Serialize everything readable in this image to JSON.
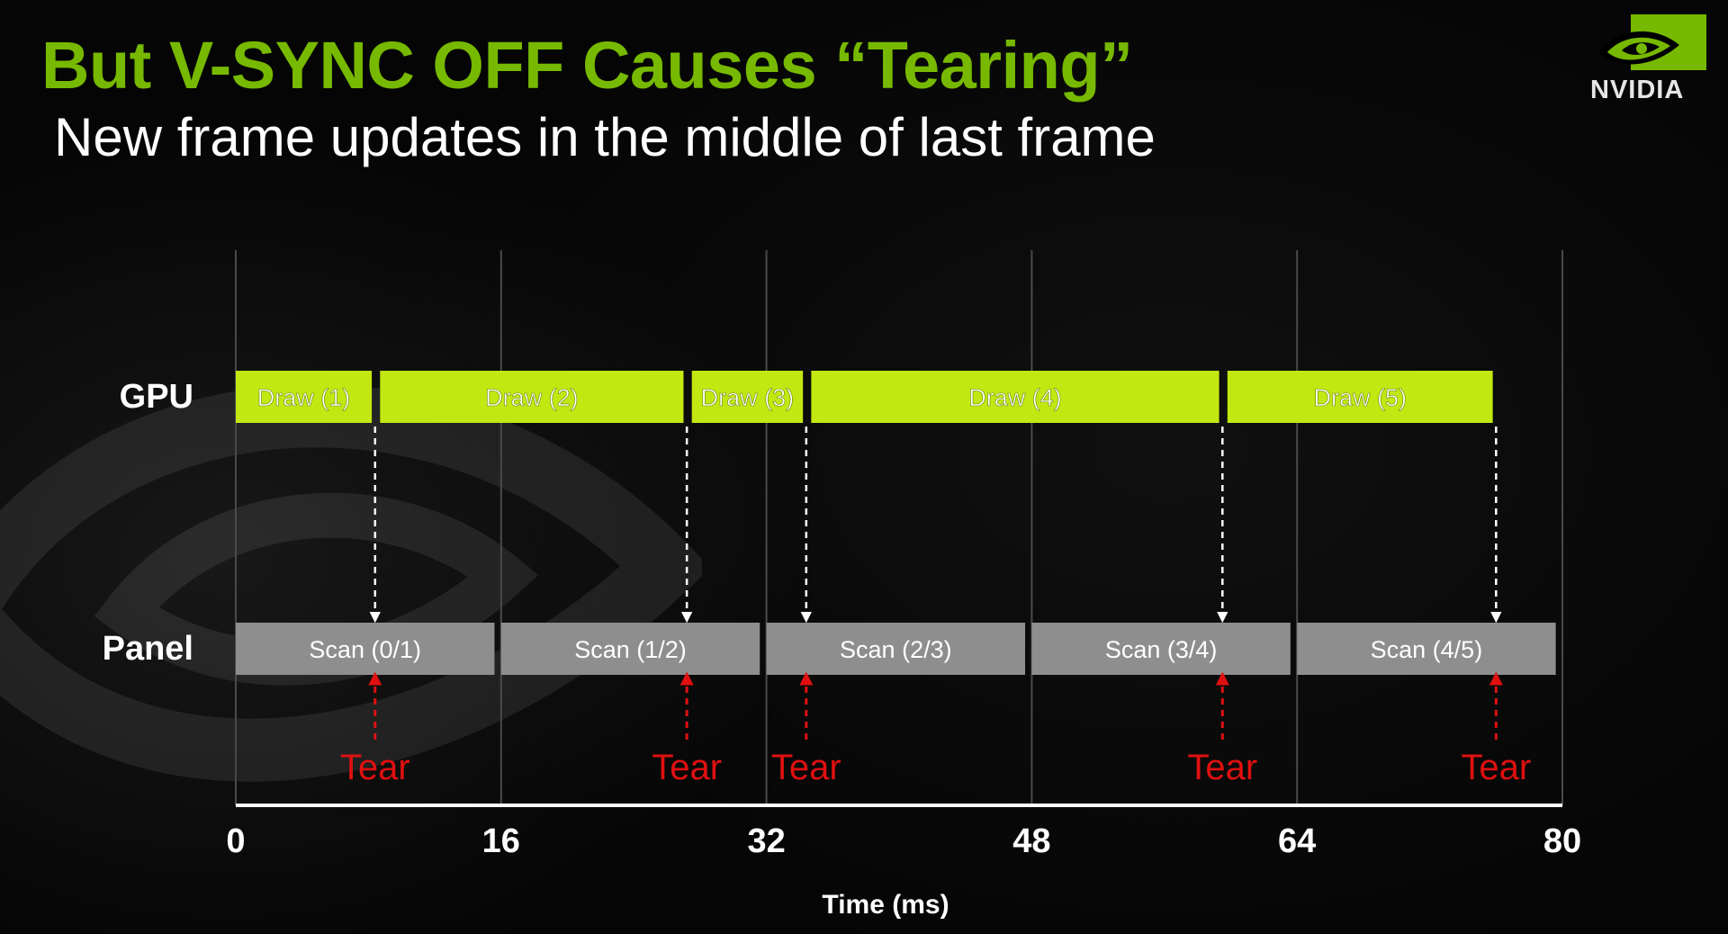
{
  "slide": {
    "title": "But V-SYNC OFF Causes “Tearing”",
    "subtitle": "New frame updates in the middle of last frame",
    "logo_text": "NVIDIA",
    "logo_icon": "nvidia-eye-icon"
  },
  "diagram": {
    "x_axis": {
      "label": "Time (ms)",
      "min": 0,
      "max": 80,
      "ticks": [
        0,
        16,
        32,
        48,
        64,
        80
      ]
    },
    "rows": {
      "gpu_label": "GPU",
      "panel_label": "Panel"
    },
    "gpu_bars": [
      {
        "label": "Draw (1)",
        "start": 0,
        "end": 8.2
      },
      {
        "label": "Draw (2)",
        "start": 8.7,
        "end": 27.0
      },
      {
        "label": "Draw (3)",
        "start": 27.5,
        "end": 34.2
      },
      {
        "label": "Draw (4)",
        "start": 34.7,
        "end": 59.3
      },
      {
        "label": "Draw (5)",
        "start": 59.8,
        "end": 75.8
      }
    ],
    "panel_bars": [
      {
        "label": "Scan (0/1)",
        "start": 0,
        "end": 15.6
      },
      {
        "label": "Scan (1/2)",
        "start": 16,
        "end": 31.6
      },
      {
        "label": "Scan (2/3)",
        "start": 32,
        "end": 47.6
      },
      {
        "label": "Scan (3/4)",
        "start": 48,
        "end": 63.6
      },
      {
        "label": "Scan (4/5)",
        "start": 64,
        "end": 79.6
      }
    ],
    "tears": [
      {
        "label": "Tear",
        "time": 8.4
      },
      {
        "label": "Tear",
        "time": 27.2
      },
      {
        "label": "Tear",
        "time": 34.4
      },
      {
        "label": "Tear",
        "time": 59.5
      },
      {
        "label": "Tear",
        "time": 76.0
      }
    ],
    "colors": {
      "title_green": "#76b900",
      "draw_bar": "#c2e812",
      "scan_bar": "#8e8e8e",
      "tear_red": "#e01010",
      "grid_line": "#4a4a4a",
      "axis_line": "#ffffff"
    }
  }
}
